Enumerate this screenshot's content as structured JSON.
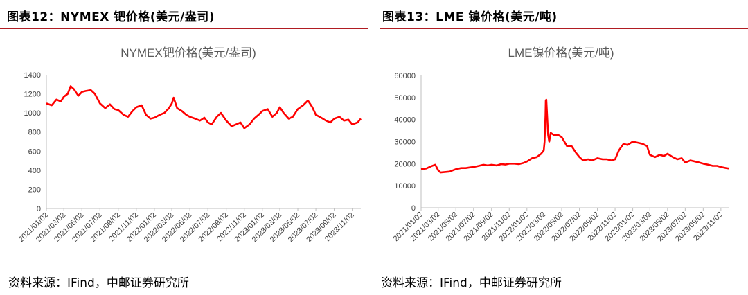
{
  "colors": {
    "accent": "#b01c22",
    "series": "#ff0000",
    "axis": "#bfbfbf",
    "text": "#404040"
  },
  "left": {
    "fig_title": "图表12：NYMEX 钯价格(美元/盎司)",
    "source": "资料来源：IFind，中邮证券研究所"
  },
  "right": {
    "fig_title": "图表13：LME 镍价格(美元/吨)",
    "source": "资料来源：IFind，中邮证券研究所"
  },
  "chart_data": [
    {
      "type": "line",
      "title": "NYMEX钯价格(美元/盎司)",
      "xlabel": "",
      "ylabel": "",
      "ylim": [
        0,
        1400
      ],
      "yticks": [
        0,
        200,
        400,
        600,
        800,
        1000,
        1200,
        1400
      ],
      "xticks": [
        "2021/01/02",
        "2021/03/02",
        "2021/05/02",
        "2021/07/02",
        "2021/09/02",
        "2021/11/02",
        "2022/01/02",
        "2022/03/02",
        "2022/05/02",
        "2022/07/02",
        "2022/09/02",
        "2022/11/02",
        "2023/01/02",
        "2023/03/02",
        "2023/05/02",
        "2023/07/02",
        "2023/09/02",
        "2023/11/02"
      ],
      "legend": "none",
      "grid": false,
      "series": [
        {
          "x": [
            "2021/01/02",
            "2021/01/20",
            "2021/02/05",
            "2021/02/20",
            "2021/03/02",
            "2021/03/15",
            "2021/03/25",
            "2021/04/05",
            "2021/04/20",
            "2021/05/02",
            "2021/05/15",
            "2021/06/01",
            "2021/06/15",
            "2021/07/02",
            "2021/07/20",
            "2021/08/05",
            "2021/08/20",
            "2021/09/02",
            "2021/09/20",
            "2021/10/05",
            "2021/10/20",
            "2021/11/02",
            "2021/11/20",
            "2021/12/05",
            "2021/12/20",
            "2022/01/02",
            "2022/01/20",
            "2022/02/05",
            "2022/02/20",
            "2022/03/02",
            "2022/03/08",
            "2022/03/20",
            "2022/04/05",
            "2022/04/20",
            "2022/05/02",
            "2022/05/20",
            "2022/06/05",
            "2022/06/20",
            "2022/07/02",
            "2022/07/15",
            "2022/08/01",
            "2022/08/15",
            "2022/09/02",
            "2022/09/20",
            "2022/10/05",
            "2022/10/20",
            "2022/11/02",
            "2022/11/20",
            "2022/12/05",
            "2022/12/20",
            "2023/01/02",
            "2023/01/20",
            "2023/02/05",
            "2023/02/20",
            "2023/03/02",
            "2023/03/15",
            "2023/04/01",
            "2023/04/15",
            "2023/05/02",
            "2023/05/20",
            "2023/06/05",
            "2023/06/20",
            "2023/07/02",
            "2023/07/20",
            "2023/08/05",
            "2023/08/20",
            "2023/09/02",
            "2023/09/20",
            "2023/10/05",
            "2023/10/20",
            "2023/11/02",
            "2023/11/20",
            "2023/12/01"
          ],
          "values": [
            1100,
            1080,
            1140,
            1120,
            1170,
            1200,
            1280,
            1250,
            1180,
            1220,
            1230,
            1240,
            1200,
            1100,
            1050,
            1090,
            1040,
            1030,
            980,
            960,
            1020,
            1060,
            1080,
            980,
            940,
            950,
            980,
            1000,
            1050,
            1100,
            1160,
            1050,
            1020,
            980,
            960,
            940,
            920,
            950,
            900,
            880,
            960,
            1000,
            920,
            860,
            880,
            900,
            840,
            880,
            940,
            980,
            1020,
            1040,
            960,
            1000,
            1060,
            1000,
            940,
            960,
            1040,
            1080,
            1130,
            1060,
            980,
            950,
            920,
            900,
            940,
            960,
            920,
            930,
            880,
            900,
            940
          ]
        }
      ]
    },
    {
      "type": "line",
      "title": "LME镍价格(美元/吨)",
      "xlabel": "",
      "ylabel": "",
      "ylim": [
        0,
        60000
      ],
      "yticks": [
        0,
        10000,
        20000,
        30000,
        40000,
        50000,
        60000
      ],
      "xticks": [
        "2021/01/02",
        "2021/03/02",
        "2021/05/02",
        "2021/07/02",
        "2021/09/02",
        "2021/11/02",
        "2022/01/02",
        "2022/03/02",
        "2022/05/02",
        "2022/07/02",
        "2022/09/02",
        "2022/11/02",
        "2023/01/02",
        "2023/03/02",
        "2023/05/02",
        "2023/07/02",
        "2023/09/02",
        "2023/11/02"
      ],
      "legend": "none",
      "grid": false,
      "series": [
        {
          "x": [
            "2021/01/02",
            "2021/01/20",
            "2021/02/05",
            "2021/02/20",
            "2021/03/02",
            "2021/03/10",
            "2021/03/25",
            "2021/04/10",
            "2021/05/02",
            "2021/05/20",
            "2021/06/05",
            "2021/06/20",
            "2021/07/02",
            "2021/07/20",
            "2021/08/05",
            "2021/08/20",
            "2021/09/02",
            "2021/09/20",
            "2021/10/05",
            "2021/10/20",
            "2021/11/02",
            "2021/11/20",
            "2021/12/05",
            "2021/12/20",
            "2022/01/02",
            "2022/01/20",
            "2022/02/05",
            "2022/02/20",
            "2022/03/01",
            "2022/03/04",
            "2022/03/07",
            "2022/03/08",
            "2022/03/10",
            "2022/03/16",
            "2022/03/20",
            "2022/03/25",
            "2022/04/05",
            "2022/04/20",
            "2022/05/02",
            "2022/05/20",
            "2022/06/05",
            "2022/06/20",
            "2022/07/02",
            "2022/07/15",
            "2022/08/01",
            "2022/08/15",
            "2022/09/02",
            "2022/09/20",
            "2022/10/05",
            "2022/10/20",
            "2022/11/02",
            "2022/11/15",
            "2022/12/01",
            "2022/12/15",
            "2023/01/02",
            "2023/01/20",
            "2023/02/05",
            "2023/02/20",
            "2023/03/02",
            "2023/03/20",
            "2023/04/05",
            "2023/04/20",
            "2023/05/02",
            "2023/05/20",
            "2023/06/05",
            "2023/06/20",
            "2023/07/02",
            "2023/07/20",
            "2023/08/05",
            "2023/08/20",
            "2023/09/02",
            "2023/09/20",
            "2023/10/05",
            "2023/10/20",
            "2023/11/02",
            "2023/11/20",
            "2023/12/01"
          ],
          "values": [
            17500,
            17800,
            18800,
            19500,
            17000,
            16000,
            16200,
            16400,
            17500,
            18000,
            18000,
            18300,
            18500,
            19000,
            19500,
            19200,
            19500,
            19200,
            19800,
            19600,
            20000,
            20000,
            19800,
            20300,
            21000,
            22500,
            23000,
            24500,
            26000,
            30000,
            42000,
            48500,
            49000,
            33000,
            30000,
            34000,
            33000,
            33000,
            32000,
            28000,
            28000,
            25000,
            23000,
            21500,
            22000,
            21500,
            22500,
            22000,
            22000,
            21500,
            22000,
            26000,
            29000,
            28500,
            30000,
            29500,
            29000,
            28000,
            24000,
            23000,
            24000,
            23500,
            24500,
            23000,
            22000,
            22500,
            20500,
            21500,
            21000,
            20500,
            20000,
            19500,
            19000,
            19000,
            18500,
            18000,
            17800
          ]
        }
      ]
    }
  ]
}
